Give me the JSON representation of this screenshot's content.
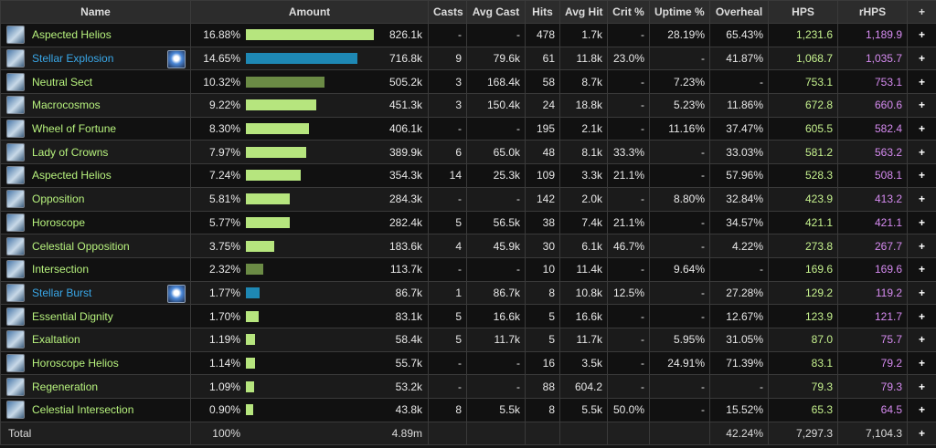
{
  "columns": {
    "name": "Name",
    "amount": "Amount",
    "casts": "Casts",
    "avg_cast": "Avg Cast",
    "hits": "Hits",
    "avg_hit": "Avg Hit",
    "crit": "Crit %",
    "uptime": "Uptime %",
    "overheal": "Overheal",
    "hps": "HPS",
    "rhps": "rHPS",
    "plus": "+"
  },
  "colors": {
    "name_default": "#b7f27d",
    "name_pet": "#39a7e8",
    "bar_default": "#b6e57e",
    "bar_pet": "#1e88b4",
    "bar_dark": "#6b8b45",
    "hps": "#c6f28e",
    "rhps": "#d68bf1"
  },
  "rows": [
    {
      "name": "Aspected Helios",
      "icon": "aspected-helios-icon",
      "pet": false,
      "bar": "default",
      "pct": "16.88%",
      "bar_fraction": 0.1688,
      "amount": "826.1k",
      "casts": "-",
      "avg_cast": "-",
      "hits": "478",
      "avg_hit": "1.7k",
      "crit": "-",
      "uptime": "28.19%",
      "overheal": "65.43%",
      "hps": "1,231.6",
      "rhps": "1,189.9",
      "plus": "+"
    },
    {
      "name": "Stellar Explosion",
      "icon": "stellar-explosion-icon",
      "pet": true,
      "bar": "pet",
      "pct": "14.65%",
      "bar_fraction": 0.1465,
      "amount": "716.8k",
      "casts": "9",
      "avg_cast": "79.6k",
      "hits": "61",
      "avg_hit": "11.8k",
      "crit": "23.0%",
      "uptime": "-",
      "overheal": "41.87%",
      "hps": "1,068.7",
      "rhps": "1,035.7",
      "plus": "+"
    },
    {
      "name": "Neutral Sect",
      "icon": "neutral-sect-icon",
      "pet": false,
      "bar": "dark",
      "pct": "10.32%",
      "bar_fraction": 0.1032,
      "amount": "505.2k",
      "casts": "3",
      "avg_cast": "168.4k",
      "hits": "58",
      "avg_hit": "8.7k",
      "crit": "-",
      "uptime": "7.23%",
      "overheal": "-",
      "hps": "753.1",
      "rhps": "753.1",
      "plus": "+"
    },
    {
      "name": "Macrocosmos",
      "icon": "macrocosmos-icon",
      "pet": false,
      "bar": "default",
      "pct": "9.22%",
      "bar_fraction": 0.0922,
      "amount": "451.3k",
      "casts": "3",
      "avg_cast": "150.4k",
      "hits": "24",
      "avg_hit": "18.8k",
      "crit": "-",
      "uptime": "5.23%",
      "overheal": "11.86%",
      "hps": "672.8",
      "rhps": "660.6",
      "plus": "+"
    },
    {
      "name": "Wheel of Fortune",
      "icon": "wheel-of-fortune-icon",
      "pet": false,
      "bar": "default",
      "pct": "8.30%",
      "bar_fraction": 0.083,
      "amount": "406.1k",
      "casts": "-",
      "avg_cast": "-",
      "hits": "195",
      "avg_hit": "2.1k",
      "crit": "-",
      "uptime": "11.16%",
      "overheal": "37.47%",
      "hps": "605.5",
      "rhps": "582.4",
      "plus": "+"
    },
    {
      "name": "Lady of Crowns",
      "icon": "lady-of-crowns-icon",
      "pet": false,
      "bar": "default",
      "pct": "7.97%",
      "bar_fraction": 0.0797,
      "amount": "389.9k",
      "casts": "6",
      "avg_cast": "65.0k",
      "hits": "48",
      "avg_hit": "8.1k",
      "crit": "33.3%",
      "uptime": "-",
      "overheal": "33.03%",
      "hps": "581.2",
      "rhps": "563.2",
      "plus": "+"
    },
    {
      "name": "Aspected Helios",
      "icon": "aspected-helios-icon",
      "pet": false,
      "bar": "default",
      "pct": "7.24%",
      "bar_fraction": 0.0724,
      "amount": "354.3k",
      "casts": "14",
      "avg_cast": "25.3k",
      "hits": "109",
      "avg_hit": "3.3k",
      "crit": "21.1%",
      "uptime": "-",
      "overheal": "57.96%",
      "hps": "528.3",
      "rhps": "508.1",
      "plus": "+"
    },
    {
      "name": "Opposition",
      "icon": "opposition-icon",
      "pet": false,
      "bar": "default",
      "pct": "5.81%",
      "bar_fraction": 0.0581,
      "amount": "284.3k",
      "casts": "-",
      "avg_cast": "-",
      "hits": "142",
      "avg_hit": "2.0k",
      "crit": "-",
      "uptime": "8.80%",
      "overheal": "32.84%",
      "hps": "423.9",
      "rhps": "413.2",
      "plus": "+"
    },
    {
      "name": "Horoscope",
      "icon": "horoscope-icon",
      "pet": false,
      "bar": "default",
      "pct": "5.77%",
      "bar_fraction": 0.0577,
      "amount": "282.4k",
      "casts": "5",
      "avg_cast": "56.5k",
      "hits": "38",
      "avg_hit": "7.4k",
      "crit": "21.1%",
      "uptime": "-",
      "overheal": "34.57%",
      "hps": "421.1",
      "rhps": "421.1",
      "plus": "+"
    },
    {
      "name": "Celestial Opposition",
      "icon": "celestial-opposition-icon",
      "pet": false,
      "bar": "default",
      "pct": "3.75%",
      "bar_fraction": 0.0375,
      "amount": "183.6k",
      "casts": "4",
      "avg_cast": "45.9k",
      "hits": "30",
      "avg_hit": "6.1k",
      "crit": "46.7%",
      "uptime": "-",
      "overheal": "4.22%",
      "hps": "273.8",
      "rhps": "267.7",
      "plus": "+"
    },
    {
      "name": "Intersection",
      "icon": "intersection-icon",
      "pet": false,
      "bar": "dark",
      "pct": "2.32%",
      "bar_fraction": 0.0232,
      "amount": "113.7k",
      "casts": "-",
      "avg_cast": "-",
      "hits": "10",
      "avg_hit": "11.4k",
      "crit": "-",
      "uptime": "9.64%",
      "overheal": "-",
      "hps": "169.6",
      "rhps": "169.6",
      "plus": "+"
    },
    {
      "name": "Stellar Burst",
      "icon": "stellar-burst-icon",
      "pet": true,
      "bar": "pet",
      "pct": "1.77%",
      "bar_fraction": 0.0177,
      "amount": "86.7k",
      "casts": "1",
      "avg_cast": "86.7k",
      "hits": "8",
      "avg_hit": "10.8k",
      "crit": "12.5%",
      "uptime": "-",
      "overheal": "27.28%",
      "hps": "129.2",
      "rhps": "119.2",
      "plus": "+"
    },
    {
      "name": "Essential Dignity",
      "icon": "essential-dignity-icon",
      "pet": false,
      "bar": "default",
      "pct": "1.70%",
      "bar_fraction": 0.017,
      "amount": "83.1k",
      "casts": "5",
      "avg_cast": "16.6k",
      "hits": "5",
      "avg_hit": "16.6k",
      "crit": "-",
      "uptime": "-",
      "overheal": "12.67%",
      "hps": "123.9",
      "rhps": "121.7",
      "plus": "+"
    },
    {
      "name": "Exaltation",
      "icon": "exaltation-icon",
      "pet": false,
      "bar": "default",
      "pct": "1.19%",
      "bar_fraction": 0.0119,
      "amount": "58.4k",
      "casts": "5",
      "avg_cast": "11.7k",
      "hits": "5",
      "avg_hit": "11.7k",
      "crit": "-",
      "uptime": "5.95%",
      "overheal": "31.05%",
      "hps": "87.0",
      "rhps": "75.7",
      "plus": "+"
    },
    {
      "name": "Horoscope Helios",
      "icon": "horoscope-helios-icon",
      "pet": false,
      "bar": "default",
      "pct": "1.14%",
      "bar_fraction": 0.0114,
      "amount": "55.7k",
      "casts": "-",
      "avg_cast": "-",
      "hits": "16",
      "avg_hit": "3.5k",
      "crit": "-",
      "uptime": "24.91%",
      "overheal": "71.39%",
      "hps": "83.1",
      "rhps": "79.2",
      "plus": "+"
    },
    {
      "name": "Regeneration",
      "icon": "regeneration-icon",
      "pet": false,
      "bar": "default",
      "pct": "1.09%",
      "bar_fraction": 0.0109,
      "amount": "53.2k",
      "casts": "-",
      "avg_cast": "-",
      "hits": "88",
      "avg_hit": "604.2",
      "crit": "-",
      "uptime": "-",
      "overheal": "-",
      "hps": "79.3",
      "rhps": "79.3",
      "plus": "+"
    },
    {
      "name": "Celestial Intersection",
      "icon": "celestial-intersection-icon",
      "pet": false,
      "bar": "default",
      "pct": "0.90%",
      "bar_fraction": 0.009,
      "amount": "43.8k",
      "casts": "8",
      "avg_cast": "5.5k",
      "hits": "8",
      "avg_hit": "5.5k",
      "crit": "50.0%",
      "uptime": "-",
      "overheal": "15.52%",
      "hps": "65.3",
      "rhps": "64.5",
      "plus": "+"
    }
  ],
  "total": {
    "label": "Total",
    "pct": "100%",
    "amount": "4.89m",
    "overheal": "42.24%",
    "hps": "7,297.3",
    "rhps": "7,104.3",
    "plus": "+"
  }
}
